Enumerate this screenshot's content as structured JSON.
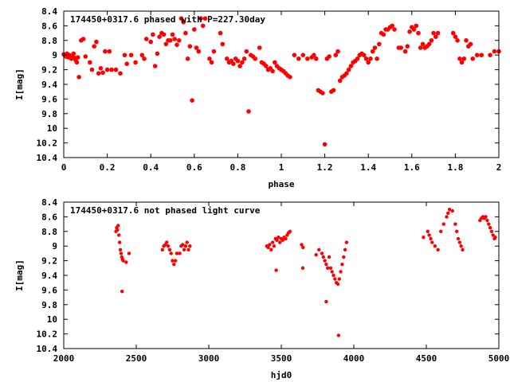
{
  "chart_data": [
    {
      "type": "scatter",
      "title": "174450+0317.6 phased with P=227.30day",
      "xlabel": "phase",
      "ylabel": "I[mag]",
      "xlim": [
        0,
        2
      ],
      "ylim": [
        10.4,
        8.4
      ],
      "y_inverted": true,
      "grid": false,
      "marker_color": "#ff0000",
      "xticks": [
        0,
        0.2,
        0.4,
        0.6,
        0.8,
        1,
        1.2,
        1.4,
        1.6,
        1.8,
        2
      ],
      "xtick_labels": [
        "0",
        "0.2",
        "0.4",
        "0.6",
        "0.8",
        "1",
        "1.2",
        "1.4",
        "1.6",
        "1.8",
        "2"
      ],
      "yticks": [
        8.4,
        8.6,
        8.8,
        9,
        9.2,
        9.4,
        9.6,
        9.8,
        10,
        10.2,
        10.4
      ],
      "ytick_labels": [
        "8.4",
        "8.6",
        "8.8",
        "9",
        "9.2",
        "9.4",
        "9.6",
        "9.8",
        "10",
        "10.2",
        "10.4"
      ],
      "points": [
        [
          0.0,
          8.99
        ],
        [
          0.005,
          9.0
        ],
        [
          0.01,
          9.02
        ],
        [
          0.015,
          8.98
        ],
        [
          0.02,
          9.03
        ],
        [
          0.025,
          9.0
        ],
        [
          0.03,
          9.01
        ],
        [
          0.035,
          9.05
        ],
        [
          0.04,
          9.02
        ],
        [
          0.045,
          8.98
        ],
        [
          0.05,
          9.04
        ],
        [
          0.055,
          9.07
        ],
        [
          0.06,
          9.1
        ],
        [
          0.065,
          9.03
        ],
        [
          0.07,
          9.3
        ],
        [
          0.08,
          8.8
        ],
        [
          0.09,
          8.78
        ],
        [
          0.1,
          9.02
        ],
        [
          0.12,
          9.1
        ],
        [
          0.13,
          9.2
        ],
        [
          0.14,
          8.88
        ],
        [
          0.15,
          8.82
        ],
        [
          0.16,
          9.25
        ],
        [
          0.17,
          9.18
        ],
        [
          0.18,
          9.24
        ],
        [
          0.19,
          8.95
        ],
        [
          0.2,
          9.2
        ],
        [
          0.21,
          8.95
        ],
        [
          0.22,
          9.2
        ],
        [
          0.24,
          9.2
        ],
        [
          0.26,
          9.25
        ],
        [
          0.28,
          9.0
        ],
        [
          0.29,
          9.12
        ],
        [
          0.31,
          9.0
        ],
        [
          0.33,
          9.1
        ],
        [
          0.36,
          9.0
        ],
        [
          0.37,
          9.05
        ],
        [
          0.38,
          8.78
        ],
        [
          0.4,
          8.82
        ],
        [
          0.41,
          8.72
        ],
        [
          0.42,
          9.15
        ],
        [
          0.43,
          8.98
        ],
        [
          0.44,
          8.75
        ],
        [
          0.45,
          8.7
        ],
        [
          0.46,
          8.72
        ],
        [
          0.47,
          8.85
        ],
        [
          0.48,
          8.8
        ],
        [
          0.49,
          8.8
        ],
        [
          0.5,
          8.72
        ],
        [
          0.51,
          8.78
        ],
        [
          0.52,
          8.86
        ],
        [
          0.53,
          8.8
        ],
        [
          0.54,
          8.5
        ],
        [
          0.55,
          8.55
        ],
        [
          0.56,
          8.7
        ],
        [
          0.57,
          9.05
        ],
        [
          0.58,
          8.88
        ],
        [
          0.59,
          9.62
        ],
        [
          0.6,
          8.65
        ],
        [
          0.61,
          8.9
        ],
        [
          0.62,
          8.95
        ],
        [
          0.63,
          8.5
        ],
        [
          0.64,
          8.6
        ],
        [
          0.65,
          8.5
        ],
        [
          0.67,
          9.05
        ],
        [
          0.68,
          9.1
        ],
        [
          0.69,
          8.95
        ],
        [
          0.72,
          8.7
        ],
        [
          0.73,
          8.85
        ],
        [
          0.75,
          9.05
        ],
        [
          0.76,
          9.1
        ],
        [
          0.77,
          9.08
        ],
        [
          0.78,
          9.12
        ],
        [
          0.79,
          9.05
        ],
        [
          0.8,
          9.08
        ],
        [
          0.81,
          9.15
        ],
        [
          0.82,
          9.1
        ],
        [
          0.83,
          9.05
        ],
        [
          0.84,
          8.95
        ],
        [
          0.85,
          9.77
        ],
        [
          0.86,
          9.0
        ],
        [
          0.87,
          9.02
        ],
        [
          0.88,
          9.05
        ],
        [
          0.9,
          8.9
        ],
        [
          0.91,
          9.1
        ],
        [
          0.92,
          9.12
        ],
        [
          0.93,
          9.15
        ],
        [
          0.94,
          9.2
        ],
        [
          0.95,
          9.18
        ],
        [
          0.96,
          9.22
        ],
        [
          0.97,
          9.1
        ],
        [
          0.98,
          9.15
        ],
        [
          0.99,
          9.18
        ],
        [
          1.0,
          9.2
        ],
        [
          1.01,
          9.22
        ],
        [
          1.02,
          9.25
        ],
        [
          1.03,
          9.28
        ],
        [
          1.04,
          9.3
        ],
        [
          1.06,
          9.0
        ],
        [
          1.08,
          9.05
        ],
        [
          1.1,
          9.0
        ],
        [
          1.12,
          9.05
        ],
        [
          1.14,
          9.03
        ],
        [
          1.15,
          9.0
        ],
        [
          1.16,
          9.05
        ],
        [
          1.17,
          9.48
        ],
        [
          1.18,
          9.5
        ],
        [
          1.19,
          9.52
        ],
        [
          1.2,
          10.22
        ],
        [
          1.21,
          9.05
        ],
        [
          1.22,
          9.02
        ],
        [
          1.23,
          9.5
        ],
        [
          1.24,
          9.48
        ],
        [
          1.25,
          9.0
        ],
        [
          1.26,
          8.95
        ],
        [
          1.27,
          9.35
        ],
        [
          1.28,
          9.3
        ],
        [
          1.29,
          9.28
        ],
        [
          1.3,
          9.25
        ],
        [
          1.31,
          9.2
        ],
        [
          1.32,
          9.15
        ],
        [
          1.33,
          9.1
        ],
        [
          1.34,
          9.08
        ],
        [
          1.35,
          9.05
        ],
        [
          1.36,
          9.0
        ],
        [
          1.37,
          8.98
        ],
        [
          1.38,
          9.0
        ],
        [
          1.39,
          9.05
        ],
        [
          1.4,
          9.1
        ],
        [
          1.41,
          9.05
        ],
        [
          1.42,
          8.95
        ],
        [
          1.43,
          8.9
        ],
        [
          1.44,
          9.05
        ],
        [
          1.45,
          8.85
        ],
        [
          1.46,
          8.7
        ],
        [
          1.47,
          8.72
        ],
        [
          1.48,
          8.65
        ],
        [
          1.49,
          8.65
        ],
        [
          1.5,
          8.62
        ],
        [
          1.51,
          8.6
        ],
        [
          1.52,
          8.65
        ],
        [
          1.54,
          8.9
        ],
        [
          1.55,
          8.9
        ],
        [
          1.57,
          8.95
        ],
        [
          1.58,
          8.88
        ],
        [
          1.59,
          8.68
        ],
        [
          1.6,
          8.62
        ],
        [
          1.61,
          8.65
        ],
        [
          1.62,
          8.6
        ],
        [
          1.63,
          8.7
        ],
        [
          1.64,
          8.9
        ],
        [
          1.65,
          8.85
        ],
        [
          1.66,
          8.9
        ],
        [
          1.67,
          8.88
        ],
        [
          1.68,
          8.85
        ],
        [
          1.69,
          8.8
        ],
        [
          1.7,
          8.7
        ],
        [
          1.71,
          8.75
        ],
        [
          1.72,
          8.7
        ],
        [
          1.79,
          8.7
        ],
        [
          1.8,
          8.75
        ],
        [
          1.81,
          8.8
        ],
        [
          1.82,
          9.05
        ],
        [
          1.83,
          9.1
        ],
        [
          1.84,
          9.05
        ],
        [
          1.85,
          8.8
        ],
        [
          1.86,
          8.88
        ],
        [
          1.87,
          8.85
        ],
        [
          1.88,
          9.05
        ],
        [
          1.9,
          9.0
        ],
        [
          1.92,
          9.0
        ],
        [
          1.96,
          9.0
        ],
        [
          1.98,
          8.95
        ],
        [
          2.0,
          8.95
        ]
      ]
    },
    {
      "type": "scatter",
      "title": "174450+0317.6 not phased light curve",
      "xlabel": "hjd0",
      "ylabel": "I[mag]",
      "xlim": [
        2000,
        5000
      ],
      "ylim": [
        10.4,
        8.4
      ],
      "y_inverted": true,
      "grid": false,
      "marker_color": "#ff0000",
      "xticks": [
        2000,
        2500,
        3000,
        3500,
        4000,
        4500,
        5000
      ],
      "xtick_labels": [
        "2000",
        "2500",
        "3000",
        "3500",
        "4000",
        "4500",
        "5000"
      ],
      "yticks": [
        8.4,
        8.6,
        8.8,
        9,
        9.2,
        9.4,
        9.6,
        9.8,
        10,
        10.2,
        10.4
      ],
      "ytick_labels": [
        "8.4",
        "8.6",
        "8.8",
        "9",
        "9.2",
        "9.4",
        "9.6",
        "9.8",
        "10",
        "10.2",
        "10.4"
      ],
      "points": [
        [
          2360,
          8.8
        ],
        [
          2365,
          8.75
        ],
        [
          2370,
          8.78
        ],
        [
          2375,
          8.72
        ],
        [
          2380,
          8.85
        ],
        [
          2385,
          8.95
        ],
        [
          2390,
          9.05
        ],
        [
          2395,
          9.1
        ],
        [
          2400,
          9.15
        ],
        [
          2405,
          9.18
        ],
        [
          2410,
          9.2
        ],
        [
          2402,
          9.62
        ],
        [
          2430,
          9.22
        ],
        [
          2450,
          9.1
        ],
        [
          2680,
          9.05
        ],
        [
          2690,
          9.0
        ],
        [
          2700,
          8.98
        ],
        [
          2710,
          8.95
        ],
        [
          2720,
          9.0
        ],
        [
          2730,
          9.05
        ],
        [
          2740,
          9.1
        ],
        [
          2750,
          9.2
        ],
        [
          2760,
          9.25
        ],
        [
          2770,
          9.2
        ],
        [
          2780,
          9.1
        ],
        [
          2800,
          9.1
        ],
        [
          2810,
          9.0
        ],
        [
          2820,
          8.98
        ],
        [
          2830,
          9.05
        ],
        [
          2840,
          9.0
        ],
        [
          2850,
          8.95
        ],
        [
          2860,
          9.05
        ],
        [
          2870,
          9.0
        ],
        [
          3400,
          9.0
        ],
        [
          3410,
          9.02
        ],
        [
          3420,
          8.98
        ],
        [
          3430,
          9.05
        ],
        [
          3440,
          8.95
        ],
        [
          3450,
          9.0
        ],
        [
          3460,
          8.9
        ],
        [
          3470,
          8.92
        ],
        [
          3480,
          8.88
        ],
        [
          3490,
          8.95
        ],
        [
          3500,
          8.9
        ],
        [
          3510,
          8.92
        ],
        [
          3520,
          8.88
        ],
        [
          3530,
          8.9
        ],
        [
          3540,
          8.85
        ],
        [
          3550,
          8.82
        ],
        [
          3560,
          8.8
        ],
        [
          3465,
          9.33
        ],
        [
          3640,
          8.98
        ],
        [
          3650,
          9.02
        ],
        [
          3648,
          9.3
        ],
        [
          3740,
          9.12
        ],
        [
          3760,
          9.05
        ],
        [
          3780,
          9.1
        ],
        [
          3790,
          9.15
        ],
        [
          3800,
          9.2
        ],
        [
          3810,
          9.25
        ],
        [
          3820,
          9.3
        ],
        [
          3810,
          9.76
        ],
        [
          3830,
          9.15
        ],
        [
          3840,
          9.3
        ],
        [
          3850,
          9.35
        ],
        [
          3860,
          9.4
        ],
        [
          3870,
          9.45
        ],
        [
          3880,
          9.5
        ],
        [
          3890,
          9.52
        ],
        [
          3895,
          10.22
        ],
        [
          3900,
          9.45
        ],
        [
          3910,
          9.35
        ],
        [
          3920,
          9.25
        ],
        [
          3930,
          9.15
        ],
        [
          3940,
          9.05
        ],
        [
          3950,
          8.95
        ],
        [
          4480,
          8.88
        ],
        [
          4510,
          8.8
        ],
        [
          4520,
          8.85
        ],
        [
          4530,
          8.9
        ],
        [
          4540,
          8.95
        ],
        [
          4560,
          9.0
        ],
        [
          4580,
          9.05
        ],
        [
          4600,
          8.8
        ],
        [
          4620,
          8.7
        ],
        [
          4640,
          8.6
        ],
        [
          4650,
          8.55
        ],
        [
          4660,
          8.5
        ],
        [
          4680,
          8.52
        ],
        [
          4700,
          8.7
        ],
        [
          4710,
          8.8
        ],
        [
          4720,
          8.9
        ],
        [
          4730,
          8.95
        ],
        [
          4740,
          9.0
        ],
        [
          4750,
          9.05
        ],
        [
          4870,
          8.65
        ],
        [
          4880,
          8.62
        ],
        [
          4890,
          8.6
        ],
        [
          4900,
          8.62
        ],
        [
          4910,
          8.6
        ],
        [
          4920,
          8.65
        ],
        [
          4930,
          8.7
        ],
        [
          4940,
          8.75
        ],
        [
          4950,
          8.8
        ],
        [
          4960,
          8.85
        ],
        [
          4970,
          8.9
        ],
        [
          4975,
          8.88
        ]
      ]
    }
  ]
}
